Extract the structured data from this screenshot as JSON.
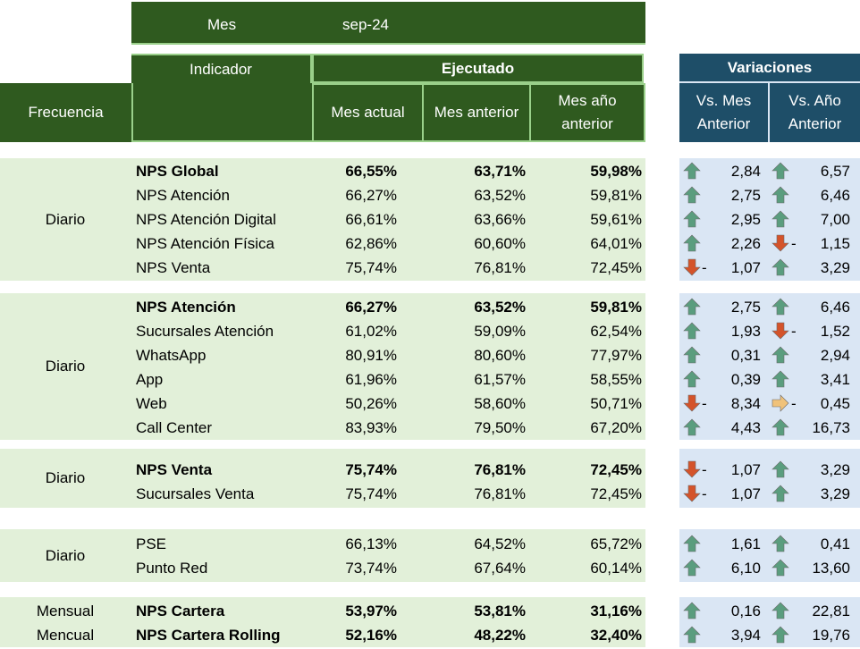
{
  "header": {
    "mes_label": "Mes",
    "mes_value": "sep-24",
    "indicador_label": "Indicador",
    "ejecutado_label": "Ejecutado",
    "frecuencia_label": "Frecuencia",
    "mes_actual_label": "Mes actual",
    "mes_anterior_label": "Mes anterior",
    "mes_ano_anterior_label": "Mes año anterior",
    "variaciones_label": "Variaciones",
    "vs_mes_anterior_label": "Vs. Mes Anterior",
    "vs_ano_anterior_label": "Vs. Año Anterior"
  },
  "groups": [
    {
      "frequency": "Diario",
      "rows": [
        {
          "name": "NPS Global",
          "bold": true,
          "actual": "66,55%",
          "anterior": "63,71%",
          "ano_anterior": "59,98%",
          "var_mes": {
            "dir": "up",
            "value": "2,84"
          },
          "var_ano": {
            "dir": "up",
            "value": "6,57"
          }
        },
        {
          "name": "NPS Atención",
          "bold": false,
          "actual": "66,27%",
          "anterior": "63,52%",
          "ano_anterior": "59,81%",
          "var_mes": {
            "dir": "up",
            "value": "2,75"
          },
          "var_ano": {
            "dir": "up",
            "value": "6,46"
          }
        },
        {
          "name": "NPS Atención Digital",
          "bold": false,
          "actual": "66,61%",
          "anterior": "63,66%",
          "ano_anterior": "59,61%",
          "var_mes": {
            "dir": "up",
            "value": "2,95"
          },
          "var_ano": {
            "dir": "up",
            "value": "7,00"
          }
        },
        {
          "name": "NPS Atención Física",
          "bold": false,
          "actual": "62,86%",
          "anterior": "60,60%",
          "ano_anterior": "64,01%",
          "var_mes": {
            "dir": "up",
            "value": "2,26"
          },
          "var_ano": {
            "dir": "down",
            "value": "1,15"
          }
        },
        {
          "name": "NPS Venta",
          "bold": false,
          "actual": "75,74%",
          "anterior": "76,81%",
          "ano_anterior": "72,45%",
          "var_mes": {
            "dir": "down",
            "value": "1,07"
          },
          "var_ano": {
            "dir": "up",
            "value": "3,29"
          }
        }
      ]
    },
    {
      "frequency": "Diario",
      "rows": [
        {
          "name": "NPS Atención",
          "bold": true,
          "actual": "66,27%",
          "anterior": "63,52%",
          "ano_anterior": "59,81%",
          "var_mes": {
            "dir": "up",
            "value": "2,75"
          },
          "var_ano": {
            "dir": "up",
            "value": "6,46"
          }
        },
        {
          "name": "Sucursales Atención",
          "bold": false,
          "actual": "61,02%",
          "anterior": "59,09%",
          "ano_anterior": "62,54%",
          "var_mes": {
            "dir": "up",
            "value": "1,93"
          },
          "var_ano": {
            "dir": "down",
            "value": "1,52"
          }
        },
        {
          "name": "WhatsApp",
          "bold": false,
          "actual": "80,91%",
          "anterior": "80,60%",
          "ano_anterior": "77,97%",
          "var_mes": {
            "dir": "up",
            "value": "0,31"
          },
          "var_ano": {
            "dir": "up",
            "value": "2,94"
          }
        },
        {
          "name": "App",
          "bold": false,
          "actual": "61,96%",
          "anterior": "61,57%",
          "ano_anterior": "58,55%",
          "var_mes": {
            "dir": "up",
            "value": "0,39"
          },
          "var_ano": {
            "dir": "up",
            "value": "3,41"
          }
        },
        {
          "name": "Web",
          "bold": false,
          "actual": "50,26%",
          "anterior": "58,60%",
          "ano_anterior": "50,71%",
          "var_mes": {
            "dir": "down",
            "value": "8,34"
          },
          "var_ano": {
            "dir": "side",
            "value": "0,45"
          }
        },
        {
          "name": "Call Center",
          "bold": false,
          "actual": "83,93%",
          "anterior": "79,50%",
          "ano_anterior": "67,20%",
          "var_mes": {
            "dir": "up",
            "value": "4,43"
          },
          "var_ano": {
            "dir": "up",
            "value": "16,73"
          }
        }
      ]
    },
    {
      "frequency": "Diario",
      "rows": [
        {
          "name": "NPS Venta",
          "bold": true,
          "actual": "75,74%",
          "anterior": "76,81%",
          "ano_anterior": "72,45%",
          "var_mes": {
            "dir": "down",
            "value": "1,07"
          },
          "var_ano": {
            "dir": "up",
            "value": "3,29"
          }
        },
        {
          "name": "Sucursales Venta",
          "bold": false,
          "actual": "75,74%",
          "anterior": "76,81%",
          "ano_anterior": "72,45%",
          "var_mes": {
            "dir": "down",
            "value": "1,07"
          },
          "var_ano": {
            "dir": "up",
            "value": "3,29"
          }
        }
      ]
    },
    {
      "frequency": "Diario",
      "rows": [
        {
          "name": "PSE",
          "bold": false,
          "actual": "66,13%",
          "anterior": "64,52%",
          "ano_anterior": "65,72%",
          "var_mes": {
            "dir": "up",
            "value": "1,61"
          },
          "var_ano": {
            "dir": "up",
            "value": "0,41"
          }
        },
        {
          "name": "Punto Red",
          "bold": false,
          "actual": "73,74%",
          "anterior": "67,64%",
          "ano_anterior": "60,14%",
          "var_mes": {
            "dir": "up",
            "value": "6,10"
          },
          "var_ano": {
            "dir": "up",
            "value": "13,60"
          }
        }
      ]
    },
    {
      "frequency": "",
      "rows": [
        {
          "name": "NPS Cartera",
          "bold": true,
          "frequency": "Mensual",
          "actual": "53,97%",
          "anterior": "53,81%",
          "ano_anterior": "31,16%",
          "var_mes": {
            "dir": "up",
            "value": "0,16"
          },
          "var_ano": {
            "dir": "up",
            "value": "22,81"
          }
        },
        {
          "name": "NPS Cartera Rolling",
          "bold": true,
          "frequency": "Mencual",
          "actual": "52,16%",
          "anterior": "48,22%",
          "ano_anterior": "32,40%",
          "var_mes": {
            "dir": "up",
            "value": "3,94"
          },
          "var_ano": {
            "dir": "up",
            "value": "19,76"
          }
        }
      ]
    }
  ],
  "colors": {
    "header_green": "#2f5a1f",
    "header_blue": "#1e4e68",
    "row_green": "#e2f0d9",
    "row_blue": "#dae6f4",
    "arrow_up": "#5a9d7e",
    "arrow_down": "#d4532a",
    "arrow_side": "#f0c27a"
  }
}
